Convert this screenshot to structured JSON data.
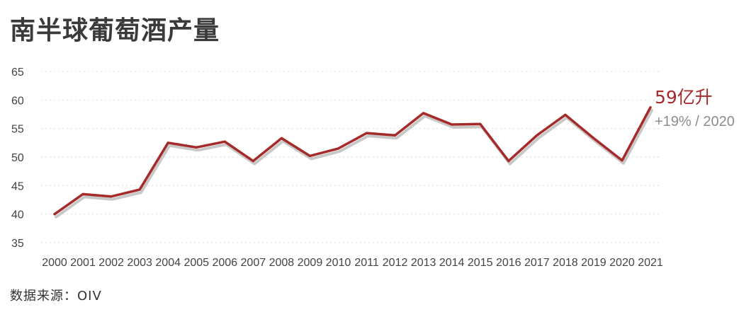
{
  "title": "南半球葡萄酒产量",
  "source": "数据来源：OIV",
  "colors": {
    "line": "#a52a2a",
    "shadow": "#c8c8c8",
    "sub": "#8c8c8c",
    "grid": "#dddddd"
  },
  "chart_data": {
    "type": "line",
    "title": "南半球葡萄酒产量",
    "xlabel": "",
    "ylabel": "",
    "ylim": [
      35,
      65
    ],
    "yticks": [
      35,
      40,
      45,
      50,
      55,
      60,
      65
    ],
    "grid": true,
    "categories": [
      "2000",
      "2001",
      "2002",
      "2003",
      "2004",
      "2005",
      "2006",
      "2007",
      "2008",
      "2009",
      "2010",
      "2011",
      "2012",
      "2013",
      "2014",
      "2015",
      "2016",
      "2017",
      "2018",
      "2019",
      "2020",
      "2021"
    ],
    "values": [
      40.0,
      43.5,
      43.1,
      44.3,
      52.5,
      51.7,
      52.7,
      49.3,
      53.3,
      50.2,
      51.5,
      54.2,
      53.8,
      57.7,
      55.7,
      55.8,
      49.3,
      53.8,
      57.4,
      53.3,
      49.4,
      58.7
    ],
    "annotation": {
      "main": "59亿升",
      "sub": "+19% / 2020"
    }
  }
}
